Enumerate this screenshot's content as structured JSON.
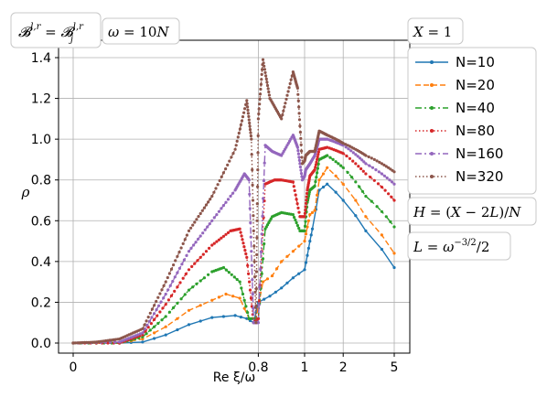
{
  "chart_data": {
    "type": "line",
    "xlabel": "Re ξ/ω",
    "ylabel": "ρ",
    "ylim": [
      0,
      1.4
    ],
    "yticks": [
      "0.0",
      "0.2",
      "0.4",
      "0.6",
      "0.8",
      "1.0",
      "1.2",
      "1.4"
    ],
    "xticks": [
      "0",
      "0.8",
      "1",
      "2",
      "5"
    ],
    "xscale": "piecewise: linear on [0,1], logarithmic on [1,5]",
    "grid": true,
    "legend_position": "right, outside axes",
    "annotations": {
      "top_left_box": "𝓑^{l,r} = 𝓑_j^{l,r}",
      "omega_box": "ω = 10N",
      "x_box": "X = 1",
      "h_box": "H = (X − 2L)/N",
      "l_box": "L = ω^{−3/2}/2"
    },
    "series": [
      {
        "name": "N=10",
        "color": "#1f77b4",
        "style": "solid",
        "marker": "dot",
        "points": [
          [
            0,
            0
          ],
          [
            0.2,
            0
          ],
          [
            0.3,
            0.005
          ],
          [
            0.4,
            0.04
          ],
          [
            0.5,
            0.09
          ],
          [
            0.6,
            0.125
          ],
          [
            0.7,
            0.135
          ],
          [
            0.75,
            0.12
          ],
          [
            0.78,
            0.1
          ],
          [
            0.8,
            0.2
          ],
          [
            0.85,
            0.23
          ],
          [
            0.9,
            0.27
          ],
          [
            0.95,
            0.32
          ],
          [
            1.0,
            0.36
          ],
          [
            1.05,
            0.43
          ],
          [
            1.1,
            0.5
          ],
          [
            1.15,
            0.56
          ],
          [
            1.3,
            0.75
          ],
          [
            1.5,
            0.78
          ],
          [
            2,
            0.7
          ],
          [
            3,
            0.55
          ],
          [
            5,
            0.37
          ]
        ]
      },
      {
        "name": "N=20",
        "color": "#ff7f0e",
        "style": "dashed",
        "marker": "dot",
        "points": [
          [
            0,
            0
          ],
          [
            0.2,
            0
          ],
          [
            0.3,
            0.02
          ],
          [
            0.4,
            0.08
          ],
          [
            0.5,
            0.16
          ],
          [
            0.6,
            0.21
          ],
          [
            0.66,
            0.24
          ],
          [
            0.72,
            0.22
          ],
          [
            0.76,
            0.12
          ],
          [
            0.79,
            0.12
          ],
          [
            0.82,
            0.3
          ],
          [
            0.86,
            0.33
          ],
          [
            0.9,
            0.4
          ],
          [
            0.95,
            0.45
          ],
          [
            1.0,
            0.5
          ],
          [
            1.05,
            0.57
          ],
          [
            1.1,
            0.63
          ],
          [
            1.2,
            0.65
          ],
          [
            1.3,
            0.8
          ],
          [
            1.5,
            0.86
          ],
          [
            2,
            0.78
          ],
          [
            3,
            0.62
          ],
          [
            5,
            0.44
          ]
        ]
      },
      {
        "name": "N=40",
        "color": "#2ca02c",
        "style": "dashdot",
        "marker": "dot",
        "points": [
          [
            0,
            0
          ],
          [
            0.2,
            0
          ],
          [
            0.3,
            0.03
          ],
          [
            0.4,
            0.13
          ],
          [
            0.5,
            0.26
          ],
          [
            0.6,
            0.35
          ],
          [
            0.65,
            0.37
          ],
          [
            0.72,
            0.3
          ],
          [
            0.76,
            0.12
          ],
          [
            0.8,
            0.12
          ],
          [
            0.83,
            0.56
          ],
          [
            0.86,
            0.62
          ],
          [
            0.9,
            0.64
          ],
          [
            0.95,
            0.63
          ],
          [
            0.98,
            0.55
          ],
          [
            1.0,
            0.55
          ],
          [
            1.05,
            0.69
          ],
          [
            1.1,
            0.75
          ],
          [
            1.2,
            0.77
          ],
          [
            1.3,
            0.9
          ],
          [
            1.5,
            0.92
          ],
          [
            2,
            0.86
          ],
          [
            3,
            0.72
          ],
          [
            5,
            0.57
          ]
        ]
      },
      {
        "name": "N=80",
        "color": "#d62728",
        "style": "dotted",
        "marker": "dot",
        "points": [
          [
            0,
            0
          ],
          [
            0.2,
            0
          ],
          [
            0.3,
            0.04
          ],
          [
            0.4,
            0.19
          ],
          [
            0.5,
            0.36
          ],
          [
            0.6,
            0.48
          ],
          [
            0.68,
            0.55
          ],
          [
            0.72,
            0.56
          ],
          [
            0.75,
            0.42
          ],
          [
            0.78,
            0.1
          ],
          [
            0.8,
            0.12
          ],
          [
            0.83,
            0.78
          ],
          [
            0.87,
            0.8
          ],
          [
            0.9,
            0.8
          ],
          [
            0.95,
            0.79
          ],
          [
            0.98,
            0.62
          ],
          [
            1.0,
            0.62
          ],
          [
            1.05,
            0.75
          ],
          [
            1.1,
            0.82
          ],
          [
            1.2,
            0.85
          ],
          [
            1.3,
            0.95
          ],
          [
            1.5,
            0.96
          ],
          [
            2,
            0.93
          ],
          [
            3,
            0.83
          ],
          [
            5,
            0.7
          ]
        ]
      },
      {
        "name": "N=160",
        "color": "#9467bd",
        "style": "dashdot",
        "marker": "dot",
        "points": [
          [
            0,
            0
          ],
          [
            0.2,
            0.005
          ],
          [
            0.3,
            0.05
          ],
          [
            0.4,
            0.24
          ],
          [
            0.5,
            0.45
          ],
          [
            0.6,
            0.6
          ],
          [
            0.7,
            0.75
          ],
          [
            0.74,
            0.83
          ],
          [
            0.76,
            0.8
          ],
          [
            0.78,
            0.1
          ],
          [
            0.8,
            0.1
          ],
          [
            0.83,
            0.97
          ],
          [
            0.86,
            0.94
          ],
          [
            0.9,
            0.92
          ],
          [
            0.95,
            1.02
          ],
          [
            0.97,
            0.96
          ],
          [
            0.99,
            0.8
          ],
          [
            1.02,
            0.85
          ],
          [
            1.1,
            0.88
          ],
          [
            1.2,
            0.92
          ],
          [
            1.3,
            1.0
          ],
          [
            1.5,
            1.0
          ],
          [
            2,
            0.97
          ],
          [
            3,
            0.88
          ],
          [
            5,
            0.78
          ]
        ]
      },
      {
        "name": "N=320",
        "color": "#8c564b",
        "style": "dotted",
        "marker": "dot",
        "points": [
          [
            0,
            0
          ],
          [
            0.1,
            0.005
          ],
          [
            0.2,
            0.02
          ],
          [
            0.3,
            0.07
          ],
          [
            0.4,
            0.3
          ],
          [
            0.5,
            0.55
          ],
          [
            0.6,
            0.72
          ],
          [
            0.7,
            0.95
          ],
          [
            0.75,
            1.19
          ],
          [
            0.77,
            1.0
          ],
          [
            0.79,
            0.1
          ],
          [
            0.8,
            1.1
          ],
          [
            0.82,
            1.39
          ],
          [
            0.85,
            1.2
          ],
          [
            0.9,
            1.1
          ],
          [
            0.95,
            1.33
          ],
          [
            0.97,
            1.25
          ],
          [
            0.99,
            0.88
          ],
          [
            1.02,
            0.92
          ],
          [
            1.1,
            0.94
          ],
          [
            1.2,
            0.94
          ],
          [
            1.3,
            1.04
          ],
          [
            1.5,
            1.02
          ],
          [
            2,
            0.98
          ],
          [
            3,
            0.92
          ],
          [
            5,
            0.84
          ]
        ]
      }
    ]
  }
}
